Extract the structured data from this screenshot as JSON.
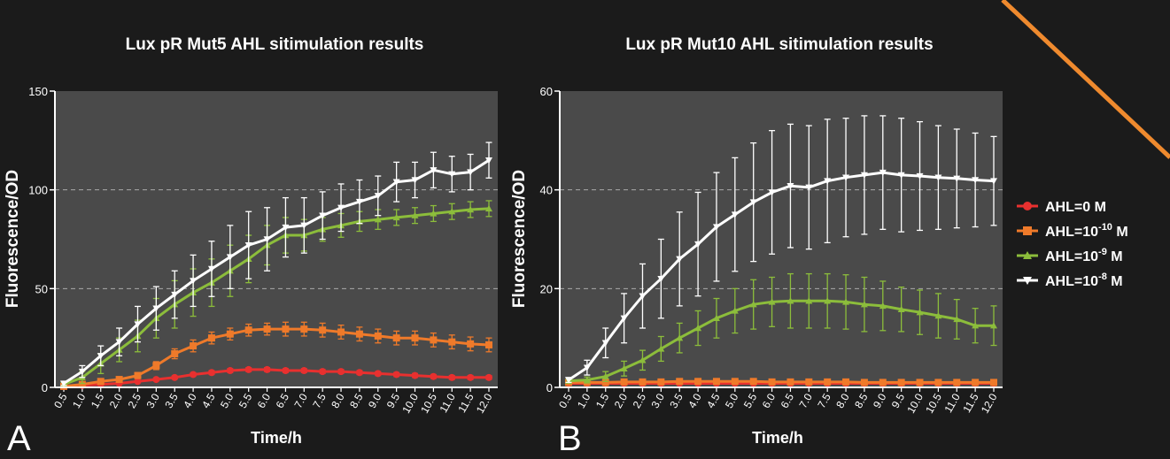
{
  "panel_letters": [
    "A",
    "B"
  ],
  "legend": {
    "items": [
      {
        "prefix": "AHL=0 M",
        "sup": "",
        "suffix": "",
        "color": "#e8302f",
        "marker": "circle"
      },
      {
        "prefix": "AHL=10",
        "sup": "-10",
        "suffix": " M",
        "color": "#ef7a2a",
        "marker": "square"
      },
      {
        "prefix": "AHL=10",
        "sup": "-9",
        "suffix": " M",
        "color": "#8cbd3b",
        "marker": "triangle-up"
      },
      {
        "prefix": "AHL=10",
        "sup": "-8",
        "suffix": " M",
        "color": "#ffffff",
        "marker": "triangle-down"
      }
    ]
  },
  "decoration": {
    "accent_line_color": "#ef8a2e",
    "plot_bg": "#4a4a4a",
    "page_bg": "#1b1b1b"
  },
  "chart_data": [
    {
      "type": "line",
      "title": "Lux pR Mut5 AHL sitimulation results",
      "xlabel": "Time/h",
      "ylabel": "Fluorescence/OD",
      "ylim": [
        0,
        150
      ],
      "yticks": [
        "0",
        "50",
        "100",
        "150"
      ],
      "grid": "dashed horizontal at 50, 100",
      "x": [
        "0.5",
        "1.0",
        "1.5",
        "2.0",
        "2.5",
        "3.0",
        "3.5",
        "4.0",
        "4.5",
        "5.0",
        "5.5",
        "6.0",
        "6.5",
        "7.0",
        "7.5",
        "8.0",
        "8.5",
        "9.0",
        "9.5",
        "10.0",
        "10.5",
        "11.0",
        "11.5",
        "12.0"
      ],
      "series": [
        {
          "name": "AHL=0 M",
          "color": "#e8302f",
          "values": [
            0.5,
            1,
            1.5,
            2,
            3,
            4,
            5,
            6.5,
            7.5,
            8.5,
            9,
            9,
            8.5,
            8.5,
            8,
            8,
            7.5,
            7,
            6.5,
            6,
            5.5,
            5,
            5,
            5
          ],
          "errors": [
            0.3,
            0.3,
            0.4,
            0.5,
            0.6,
            0.7,
            0.8,
            0.9,
            1,
            1,
            1,
            1,
            1,
            1,
            1,
            1,
            1,
            1,
            1,
            1,
            1,
            1,
            1,
            1
          ]
        },
        {
          "name": "AHL=10-10 M",
          "color": "#ef7a2a",
          "values": [
            0.5,
            1.5,
            3,
            4,
            6,
            11,
            17,
            21,
            25,
            27,
            29,
            29.5,
            29.5,
            29.5,
            29,
            28,
            27,
            26,
            25,
            25,
            24,
            23,
            22,
            21.5
          ],
          "errors": [
            0.3,
            0.5,
            0.8,
            1,
            1.5,
            2,
            2.5,
            3,
            3,
            3,
            3,
            3,
            3.5,
            3.5,
            3.5,
            3.5,
            3.5,
            3.5,
            3.5,
            3.5,
            3.5,
            3.5,
            3.5,
            3.5
          ]
        },
        {
          "name": "AHL=10-9 M",
          "color": "#8cbd3b",
          "values": [
            1.5,
            5,
            12,
            19,
            26,
            35,
            42,
            48,
            53,
            59,
            65,
            72,
            77,
            77,
            80,
            82,
            84,
            85,
            86,
            87,
            88,
            89,
            90,
            90.5
          ],
          "errors": [
            1,
            3,
            5,
            6,
            8,
            10,
            12,
            12,
            12,
            13,
            12,
            10,
            9,
            8,
            6,
            6,
            5,
            5,
            4,
            4,
            4,
            4,
            4,
            4
          ]
        },
        {
          "name": "AHL=10-8 M",
          "color": "#ffffff",
          "values": [
            2,
            8,
            16,
            23,
            32,
            40,
            47,
            54,
            60,
            66,
            72,
            75,
            81,
            82,
            87,
            91,
            94,
            97,
            104,
            105,
            110,
            108,
            109,
            115
          ],
          "errors": [
            1,
            3,
            5,
            7,
            9,
            11,
            12,
            13,
            14,
            16,
            17,
            16,
            15,
            14,
            12,
            12,
            11,
            10,
            10,
            9,
            9,
            9,
            9,
            9
          ]
        }
      ]
    },
    {
      "type": "line",
      "title": "Lux pR Mut10 AHL sitimulation results",
      "xlabel": "Time/h",
      "ylabel": "Fluorescence/OD",
      "ylim": [
        0,
        60
      ],
      "yticks": [
        "0",
        "20",
        "40",
        "60"
      ],
      "grid": "dashed horizontal at 20, 40",
      "x": [
        "0.5",
        "1.0",
        "1.5",
        "2.0",
        "2.5",
        "3.0",
        "3.5",
        "4.0",
        "4.5",
        "5.0",
        "5.5",
        "6.0",
        "6.5",
        "7.0",
        "7.5",
        "8.0",
        "8.5",
        "9.0",
        "9.5",
        "10.0",
        "10.5",
        "11.0",
        "11.5",
        "12.0"
      ],
      "series": [
        {
          "name": "AHL=0 M",
          "color": "#e8302f",
          "values": [
            0.8,
            0.8,
            0.8,
            0.8,
            0.8,
            0.8,
            0.8,
            0.8,
            0.8,
            0.8,
            0.8,
            0.8,
            0.8,
            0.8,
            0.8,
            0.8,
            0.8,
            0.8,
            0.8,
            0.8,
            0.8,
            0.8,
            0.8,
            0.8
          ],
          "errors": [
            0.1,
            0.1,
            0.1,
            0.1,
            0.1,
            0.1,
            0.1,
            0.1,
            0.1,
            0.1,
            0.1,
            0.1,
            0.1,
            0.1,
            0.1,
            0.1,
            0.1,
            0.1,
            0.1,
            0.1,
            0.1,
            0.1,
            0.1,
            0.1
          ]
        },
        {
          "name": "AHL=10-10 M",
          "color": "#ef7a2a",
          "values": [
            1,
            1,
            1,
            1.1,
            1.1,
            1.1,
            1.2,
            1.2,
            1.2,
            1.2,
            1.2,
            1.1,
            1.1,
            1.1,
            1.1,
            1.1,
            1,
            1,
            1,
            1,
            1,
            1,
            1,
            1
          ],
          "errors": [
            0.2,
            0.2,
            0.2,
            0.2,
            0.2,
            0.2,
            0.2,
            0.2,
            0.2,
            0.2,
            0.2,
            0.2,
            0.2,
            0.2,
            0.2,
            0.2,
            0.2,
            0.2,
            0.2,
            0.2,
            0.2,
            0.2,
            0.2,
            0.2
          ]
        },
        {
          "name": "AHL=10-9 M",
          "color": "#8cbd3b",
          "values": [
            1.3,
            1.5,
            2.2,
            3.8,
            5.5,
            7.8,
            10,
            12,
            14,
            15.5,
            16.8,
            17.3,
            17.5,
            17.5,
            17.5,
            17.3,
            16.8,
            16.5,
            15.8,
            15.2,
            14.5,
            13.8,
            12.5,
            12.5
          ],
          "errors": [
            0.3,
            0.6,
            1,
            1.5,
            2,
            2.5,
            3,
            3.5,
            4,
            4.5,
            5,
            5,
            5.5,
            5.5,
            5.5,
            5.5,
            5.5,
            5,
            4.5,
            4.5,
            4.5,
            4,
            3.5,
            4
          ]
        },
        {
          "name": "AHL=10-8 M",
          "color": "#ffffff",
          "values": [
            1.5,
            4,
            9,
            14,
            18.5,
            22,
            26,
            29,
            32.5,
            35,
            37.5,
            39.5,
            40.8,
            40.5,
            41.8,
            42.5,
            43,
            43.5,
            43,
            42.8,
            42.5,
            42.3,
            42,
            41.8
          ],
          "errors": [
            0.5,
            1.5,
            3,
            5,
            6.5,
            8,
            9.5,
            10.5,
            11,
            11.5,
            12,
            12.5,
            12.5,
            12.5,
            12.5,
            12,
            12,
            11.5,
            11.5,
            11,
            10.5,
            10,
            9.5,
            9
          ]
        }
      ]
    }
  ]
}
